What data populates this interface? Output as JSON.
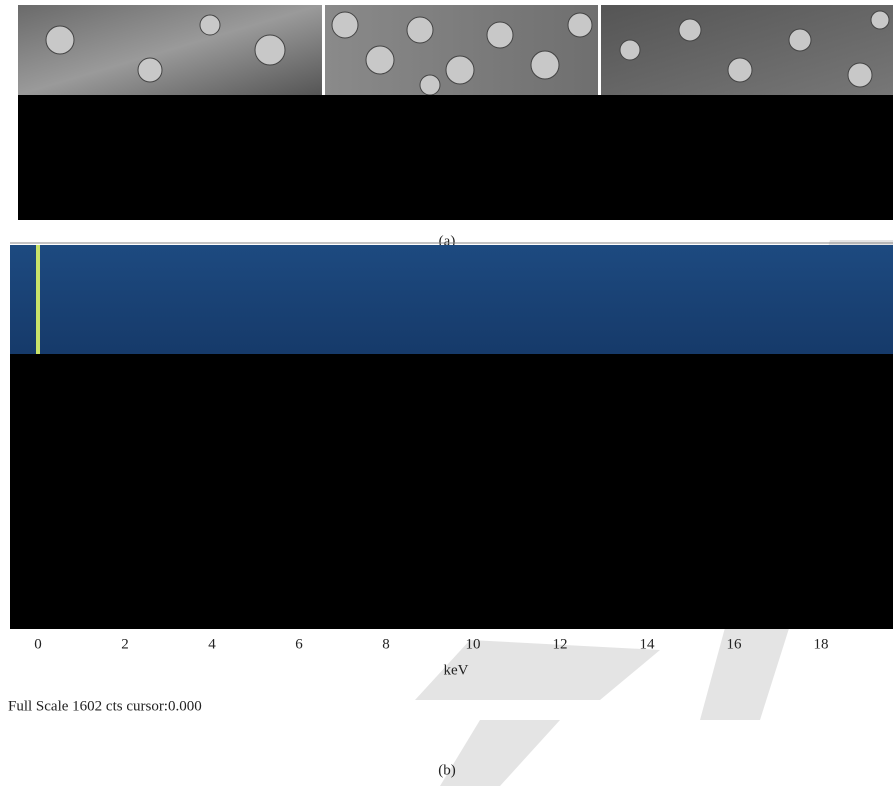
{
  "figure": {
    "panel_a": {
      "label": "(a)"
    },
    "panel_b": {
      "xticks": [
        0,
        2,
        4,
        6,
        8,
        10,
        12,
        14,
        16,
        18
      ],
      "xlabel": "keV",
      "footer": "Full Scale 1602 cts cursor:0.000",
      "label": "(b)"
    }
  }
}
